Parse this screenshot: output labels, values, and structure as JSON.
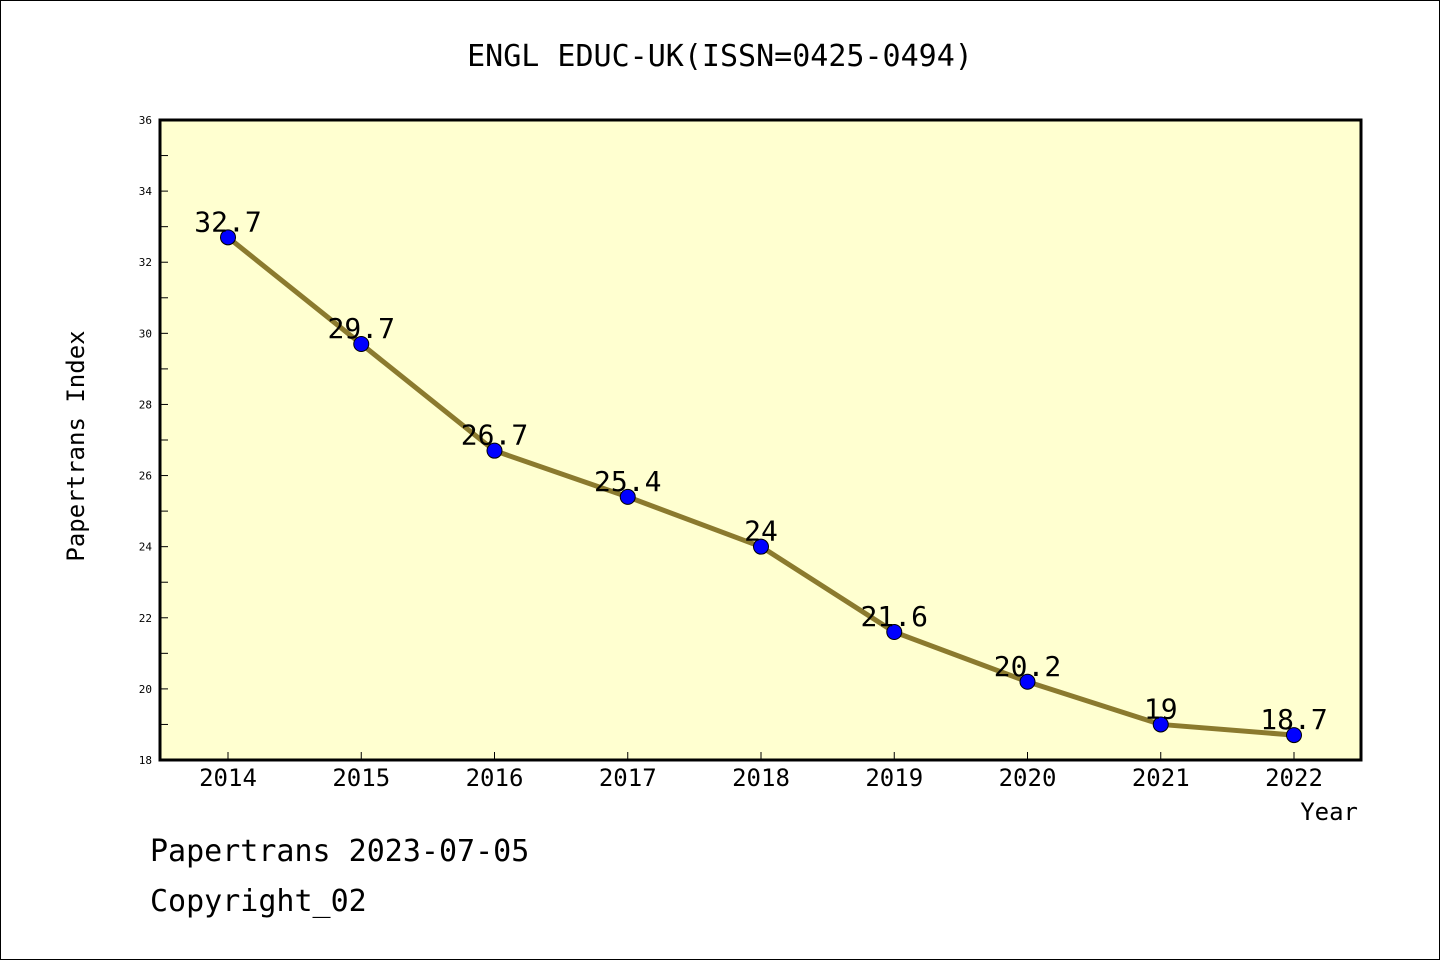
{
  "chart_data": {
    "type": "line",
    "title": "ENGL EDUC-UK(ISSN=0425-0494)",
    "xlabel": "Year",
    "ylabel": "Papertrans Index",
    "categories": [
      "2014",
      "2015",
      "2016",
      "2017",
      "2018",
      "2019",
      "2020",
      "2021",
      "2022"
    ],
    "series": [
      {
        "values": [
          32.7,
          29.7,
          26.7,
          25.4,
          24,
          21.6,
          20.2,
          19,
          18.7
        ],
        "labels": [
          "32.7",
          "29.7",
          "26.7",
          "25.4",
          "24",
          "21.6",
          "20.2",
          "19",
          "18.7"
        ]
      }
    ],
    "ylim": [
      18,
      36
    ],
    "yticks": [
      "18",
      "20",
      "22",
      "24",
      "26",
      "28",
      "30",
      "32",
      "34",
      "36"
    ],
    "grid": false,
    "colors": {
      "plot_background": "#ffffd0",
      "line": "#8b7a2e",
      "marker": "#0000ff"
    }
  },
  "footer": {
    "line1": "Papertrans 2023-07-05",
    "line2": "Copyright_02"
  }
}
